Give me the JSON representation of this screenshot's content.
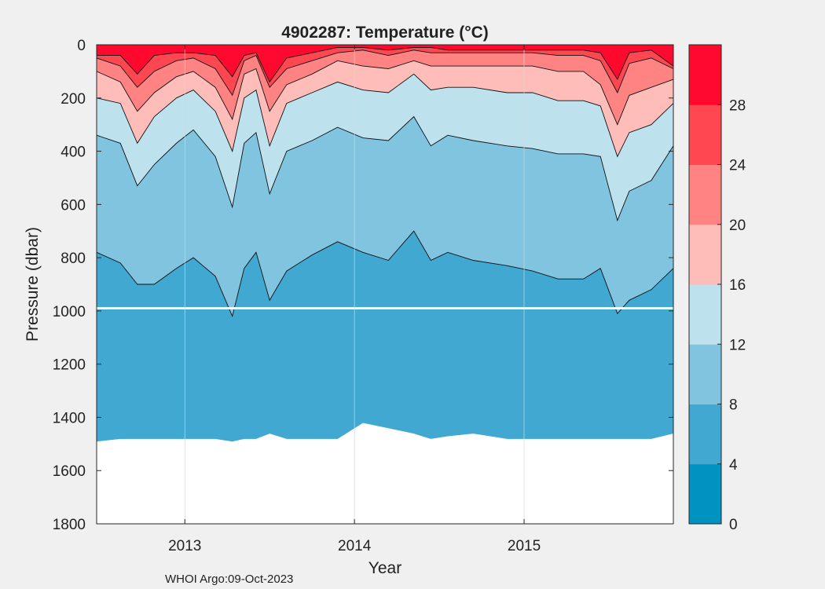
{
  "chart_data": {
    "type": "filled-contour",
    "title": "4902287:  Temperature (°C)",
    "xlabel": "Year",
    "ylabel": "Pressure (dbar)",
    "footer": "WHOI Argo:09-Oct-2023",
    "xlim": [
      2012.48,
      2015.88
    ],
    "ylim": [
      1800,
      0
    ],
    "xticks": [
      2013,
      2014,
      2015
    ],
    "xtick_labels": [
      "2013",
      "2014",
      "2015"
    ],
    "yticks": [
      0,
      200,
      400,
      600,
      800,
      1000,
      1200,
      1400,
      1600,
      1800
    ],
    "ytick_labels": [
      "0",
      "200",
      "400",
      "600",
      "800",
      "1000",
      "1200",
      "1400",
      "1600",
      "1800"
    ],
    "x_grid": true,
    "colorbar": {
      "range": [
        0,
        32
      ],
      "ticks": [
        0,
        4,
        8,
        12,
        16,
        20,
        24,
        28
      ],
      "tick_labels": [
        "0",
        "4",
        "8",
        "12",
        "16",
        "20",
        "24",
        "28"
      ],
      "bands": [
        {
          "from": 0,
          "to": 4,
          "color": "#0092c1"
        },
        {
          "from": 4,
          "to": 8,
          "color": "#41a8d1"
        },
        {
          "from": 8,
          "to": 12,
          "color": "#80c4e0"
        },
        {
          "from": 12,
          "to": 16,
          "color": "#bde1ed"
        },
        {
          "from": 16,
          "to": 20,
          "color": "#ffbdba"
        },
        {
          "from": 20,
          "to": 24,
          "color": "#ff8383"
        },
        {
          "from": 24,
          "to": 28,
          "color": "#ff4751"
        },
        {
          "from": 28,
          "to": 32,
          "color": "#ff0a2e"
        }
      ]
    },
    "time_knots": [
      2012.48,
      2012.62,
      2012.72,
      2012.82,
      2012.95,
      2013.05,
      2013.18,
      2013.28,
      2013.35,
      2013.42,
      2013.5,
      2013.6,
      2013.75,
      2013.9,
      2014.05,
      2014.2,
      2014.35,
      2014.45,
      2014.55,
      2014.7,
      2014.9,
      2015.05,
      2015.2,
      2015.35,
      2015.45,
      2015.55,
      2015.62,
      2015.75,
      2015.88
    ],
    "isotherm_depths_dbar": [
      {
        "temp": 28,
        "depths": [
          40,
          40,
          110,
          40,
          30,
          30,
          40,
          120,
          40,
          30,
          140,
          50,
          30,
          10,
          10,
          20,
          10,
          10,
          20,
          20,
          20,
          20,
          20,
          20,
          30,
          130,
          30,
          20,
          80
        ]
      },
      {
        "temp": 24,
        "depths": [
          50,
          80,
          160,
          100,
          60,
          50,
          90,
          190,
          60,
          40,
          160,
          90,
          60,
          30,
          20,
          40,
          20,
          30,
          30,
          30,
          30,
          30,
          40,
          40,
          60,
          180,
          70,
          50,
          90
        ]
      },
      {
        "temp": 20,
        "depths": [
          100,
          140,
          250,
          180,
          120,
          100,
          160,
          280,
          110,
          90,
          250,
          150,
          110,
          60,
          80,
          90,
          60,
          80,
          80,
          80,
          80,
          80,
          100,
          100,
          150,
          300,
          190,
          160,
          130
        ]
      },
      {
        "temp": 16,
        "depths": [
          200,
          220,
          370,
          270,
          200,
          170,
          250,
          400,
          200,
          170,
          380,
          220,
          180,
          140,
          170,
          180,
          110,
          170,
          160,
          160,
          180,
          180,
          210,
          210,
          230,
          420,
          330,
          300,
          220
        ]
      },
      {
        "temp": 12,
        "depths": [
          340,
          370,
          530,
          450,
          370,
          320,
          420,
          610,
          370,
          330,
          560,
          400,
          360,
          310,
          350,
          360,
          270,
          380,
          340,
          360,
          380,
          390,
          410,
          410,
          420,
          660,
          550,
          510,
          380
        ]
      },
      {
        "temp": 8,
        "depths": [
          780,
          820,
          900,
          900,
          840,
          800,
          870,
          1020,
          840,
          780,
          960,
          850,
          790,
          740,
          780,
          810,
          700,
          810,
          780,
          810,
          830,
          850,
          880,
          880,
          840,
          1010,
          960,
          920,
          840
        ]
      },
      {
        "temp": 4,
        "depths": [
          1490,
          1480,
          1480,
          1480,
          1480,
          1480,
          1480,
          1490,
          1480,
          1480,
          1460,
          1480,
          1480,
          1480,
          1420,
          1440,
          1460,
          1480,
          1470,
          1460,
          1480,
          1480,
          1480,
          1480,
          1480,
          1480,
          1480,
          1480,
          1460
        ]
      }
    ],
    "data_gap_dbar": 990
  }
}
